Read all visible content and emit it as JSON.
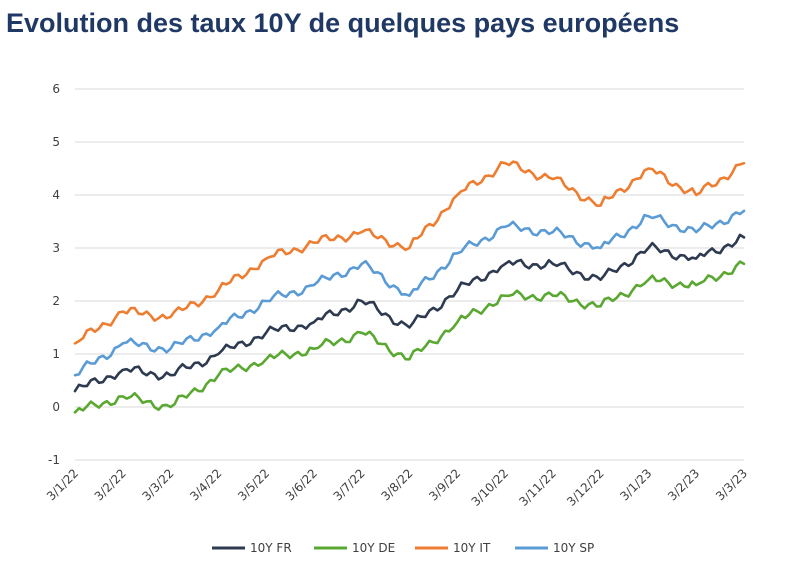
{
  "chart_data": {
    "type": "line",
    "title": "Evolution des taux 10Y de quelques pays européens",
    "ylim": [
      -1,
      6
    ],
    "yticks": [
      "-1",
      "0",
      "1",
      "2",
      "3",
      "4",
      "5",
      "6"
    ],
    "x": [
      "3/1/22",
      "3/2/22",
      "3/3/22",
      "3/4/22",
      "3/5/22",
      "3/6/22",
      "3/7/22",
      "3/8/22",
      "3/9/22",
      "3/10/22",
      "3/11/22",
      "3/12/22",
      "3/1/23",
      "3/2/23",
      "3/3/23"
    ],
    "grid": "horizontal",
    "legend_position": "bottom",
    "series": [
      {
        "name": "10Y FR",
        "color": "#2e3a50",
        "values": [
          0.3,
          0.7,
          0.6,
          1.0,
          1.4,
          1.6,
          2.0,
          1.5,
          2.2,
          2.7,
          2.7,
          2.4,
          3.0,
          2.8,
          3.2
        ]
      },
      {
        "name": "10Y DE",
        "color": "#5aa832",
        "values": [
          -0.1,
          0.2,
          0.0,
          0.6,
          0.9,
          1.1,
          1.4,
          0.9,
          1.6,
          2.1,
          2.1,
          1.9,
          2.4,
          2.3,
          2.7
        ]
      },
      {
        "name": "10Y IT",
        "color": "#ed7d31",
        "values": [
          1.2,
          1.8,
          1.7,
          2.2,
          2.8,
          3.1,
          3.3,
          3.0,
          4.0,
          4.6,
          4.3,
          3.8,
          4.5,
          4.0,
          4.6
        ]
      },
      {
        "name": "10Y SP",
        "color": "#5b9bd5",
        "values": [
          0.6,
          1.2,
          1.1,
          1.5,
          2.0,
          2.3,
          2.7,
          2.1,
          2.9,
          3.4,
          3.3,
          3.0,
          3.6,
          3.3,
          3.7
        ]
      }
    ]
  }
}
